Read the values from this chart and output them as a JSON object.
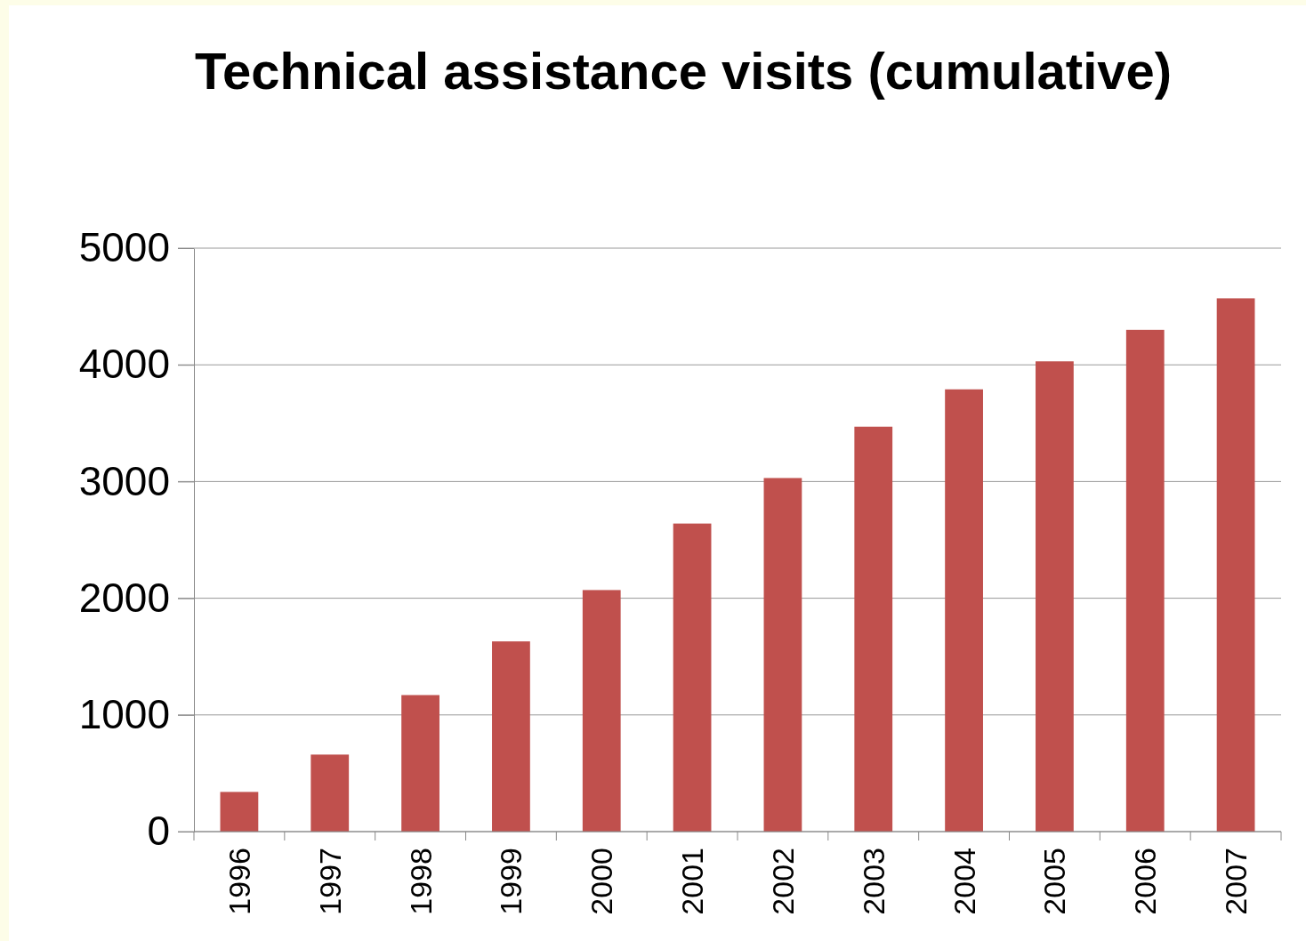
{
  "chart_data": {
    "type": "bar",
    "title": "Technical assistance visits (cumulative)",
    "categories": [
      "1996",
      "1997",
      "1998",
      "1999",
      "2000",
      "2001",
      "2002",
      "2003",
      "2004",
      "2005",
      "2006",
      "2007"
    ],
    "values": [
      340,
      660,
      1170,
      1630,
      2070,
      2640,
      3030,
      3470,
      3790,
      4030,
      4300,
      4570
    ],
    "color": "#c0504d",
    "ylim": [
      0,
      5000
    ],
    "yticks": [
      0,
      1000,
      2000,
      3000,
      4000,
      5000
    ],
    "grid": "y"
  }
}
